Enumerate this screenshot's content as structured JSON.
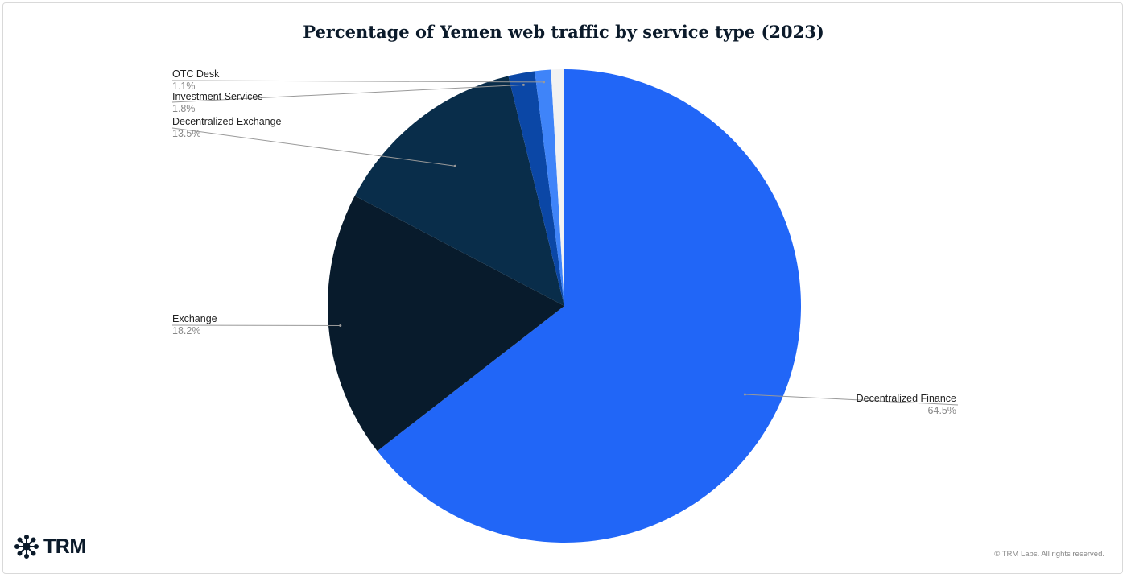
{
  "chart_data": {
    "type": "pie",
    "title": "Percentage of Yemen web traffic by service type (2023)",
    "start_angle": "12 o'clock, clockwise",
    "slices": [
      {
        "name": "Decentralized Finance",
        "value": 64.5,
        "label": "64.5%",
        "color": "#2166F7"
      },
      {
        "name": "Exchange",
        "value": 18.2,
        "label": "18.2%",
        "color": "#081B2C"
      },
      {
        "name": "Decentralized Exchange",
        "value": 13.5,
        "label": "13.5%",
        "color": "#092D4A"
      },
      {
        "name": "Investment Services",
        "value": 1.8,
        "label": "1.8%",
        "color": "#0B47A6"
      },
      {
        "name": "OTC Desk",
        "value": 1.1,
        "label": "1.1%",
        "color": "#3F84F9"
      },
      {
        "name": "",
        "value": 0.9,
        "label": "",
        "color": "#F2F2F2"
      }
    ]
  },
  "footer": {
    "logo_text": "TRM",
    "copyright": "© TRM Labs. All rights reserved."
  }
}
